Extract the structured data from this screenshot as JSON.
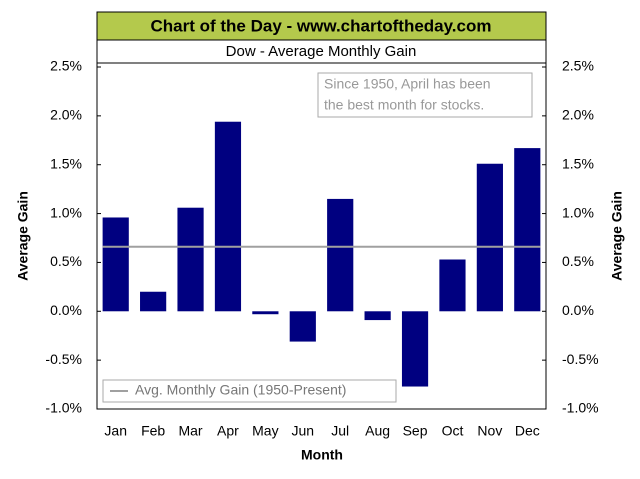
{
  "chart_data": {
    "type": "bar",
    "header": "Chart of the Day - www.chartoftheday.com",
    "title": "Dow - Average Monthly Gain",
    "annotation": [
      "Since 1950, April has been",
      "the best month for stocks."
    ],
    "xlabel": "Month",
    "ylabel": "Average Gain",
    "y2label": "Average Gain",
    "categories": [
      "Jan",
      "Feb",
      "Mar",
      "Apr",
      "May",
      "Jun",
      "Jul",
      "Aug",
      "Sep",
      "Oct",
      "Nov",
      "Dec"
    ],
    "values": [
      0.96,
      0.2,
      1.06,
      1.94,
      -0.03,
      -0.31,
      1.15,
      -0.09,
      -0.77,
      0.53,
      1.51,
      1.67
    ],
    "color": "#000080",
    "average_line": {
      "name": "Avg. Monthly Gain (1950-Present)",
      "value": 0.66,
      "color": "#a0a0a0"
    },
    "ylim": [
      -1.0,
      2.5
    ],
    "yticks": [
      {
        "value": -1.0,
        "label": "-1.0%"
      },
      {
        "value": -0.5,
        "label": "-0.5%"
      },
      {
        "value": 0,
        "label": "0.0%"
      },
      {
        "value": 0.5,
        "label": "0.5%"
      },
      {
        "value": 1.0,
        "label": "1.0%"
      },
      {
        "value": 1.5,
        "label": "1.5%"
      },
      {
        "value": 2.0,
        "label": "2.0%"
      },
      {
        "value": 2.5,
        "label": "2.5%"
      }
    ],
    "y2lim": [
      -1.0,
      2.5
    ],
    "y2ticks": [
      {
        "value": -1.0,
        "label": "-1.0%"
      },
      {
        "value": -0.5,
        "label": "-0.5%"
      },
      {
        "value": 0,
        "label": "0.0%"
      },
      {
        "value": 0.5,
        "label": "0.5%"
      },
      {
        "value": 1.0,
        "label": "1.0%"
      },
      {
        "value": 1.5,
        "label": "1.5%"
      },
      {
        "value": 2.0,
        "label": "2.0%"
      },
      {
        "value": 2.5,
        "label": "2.5%"
      }
    ],
    "grid": false
  }
}
